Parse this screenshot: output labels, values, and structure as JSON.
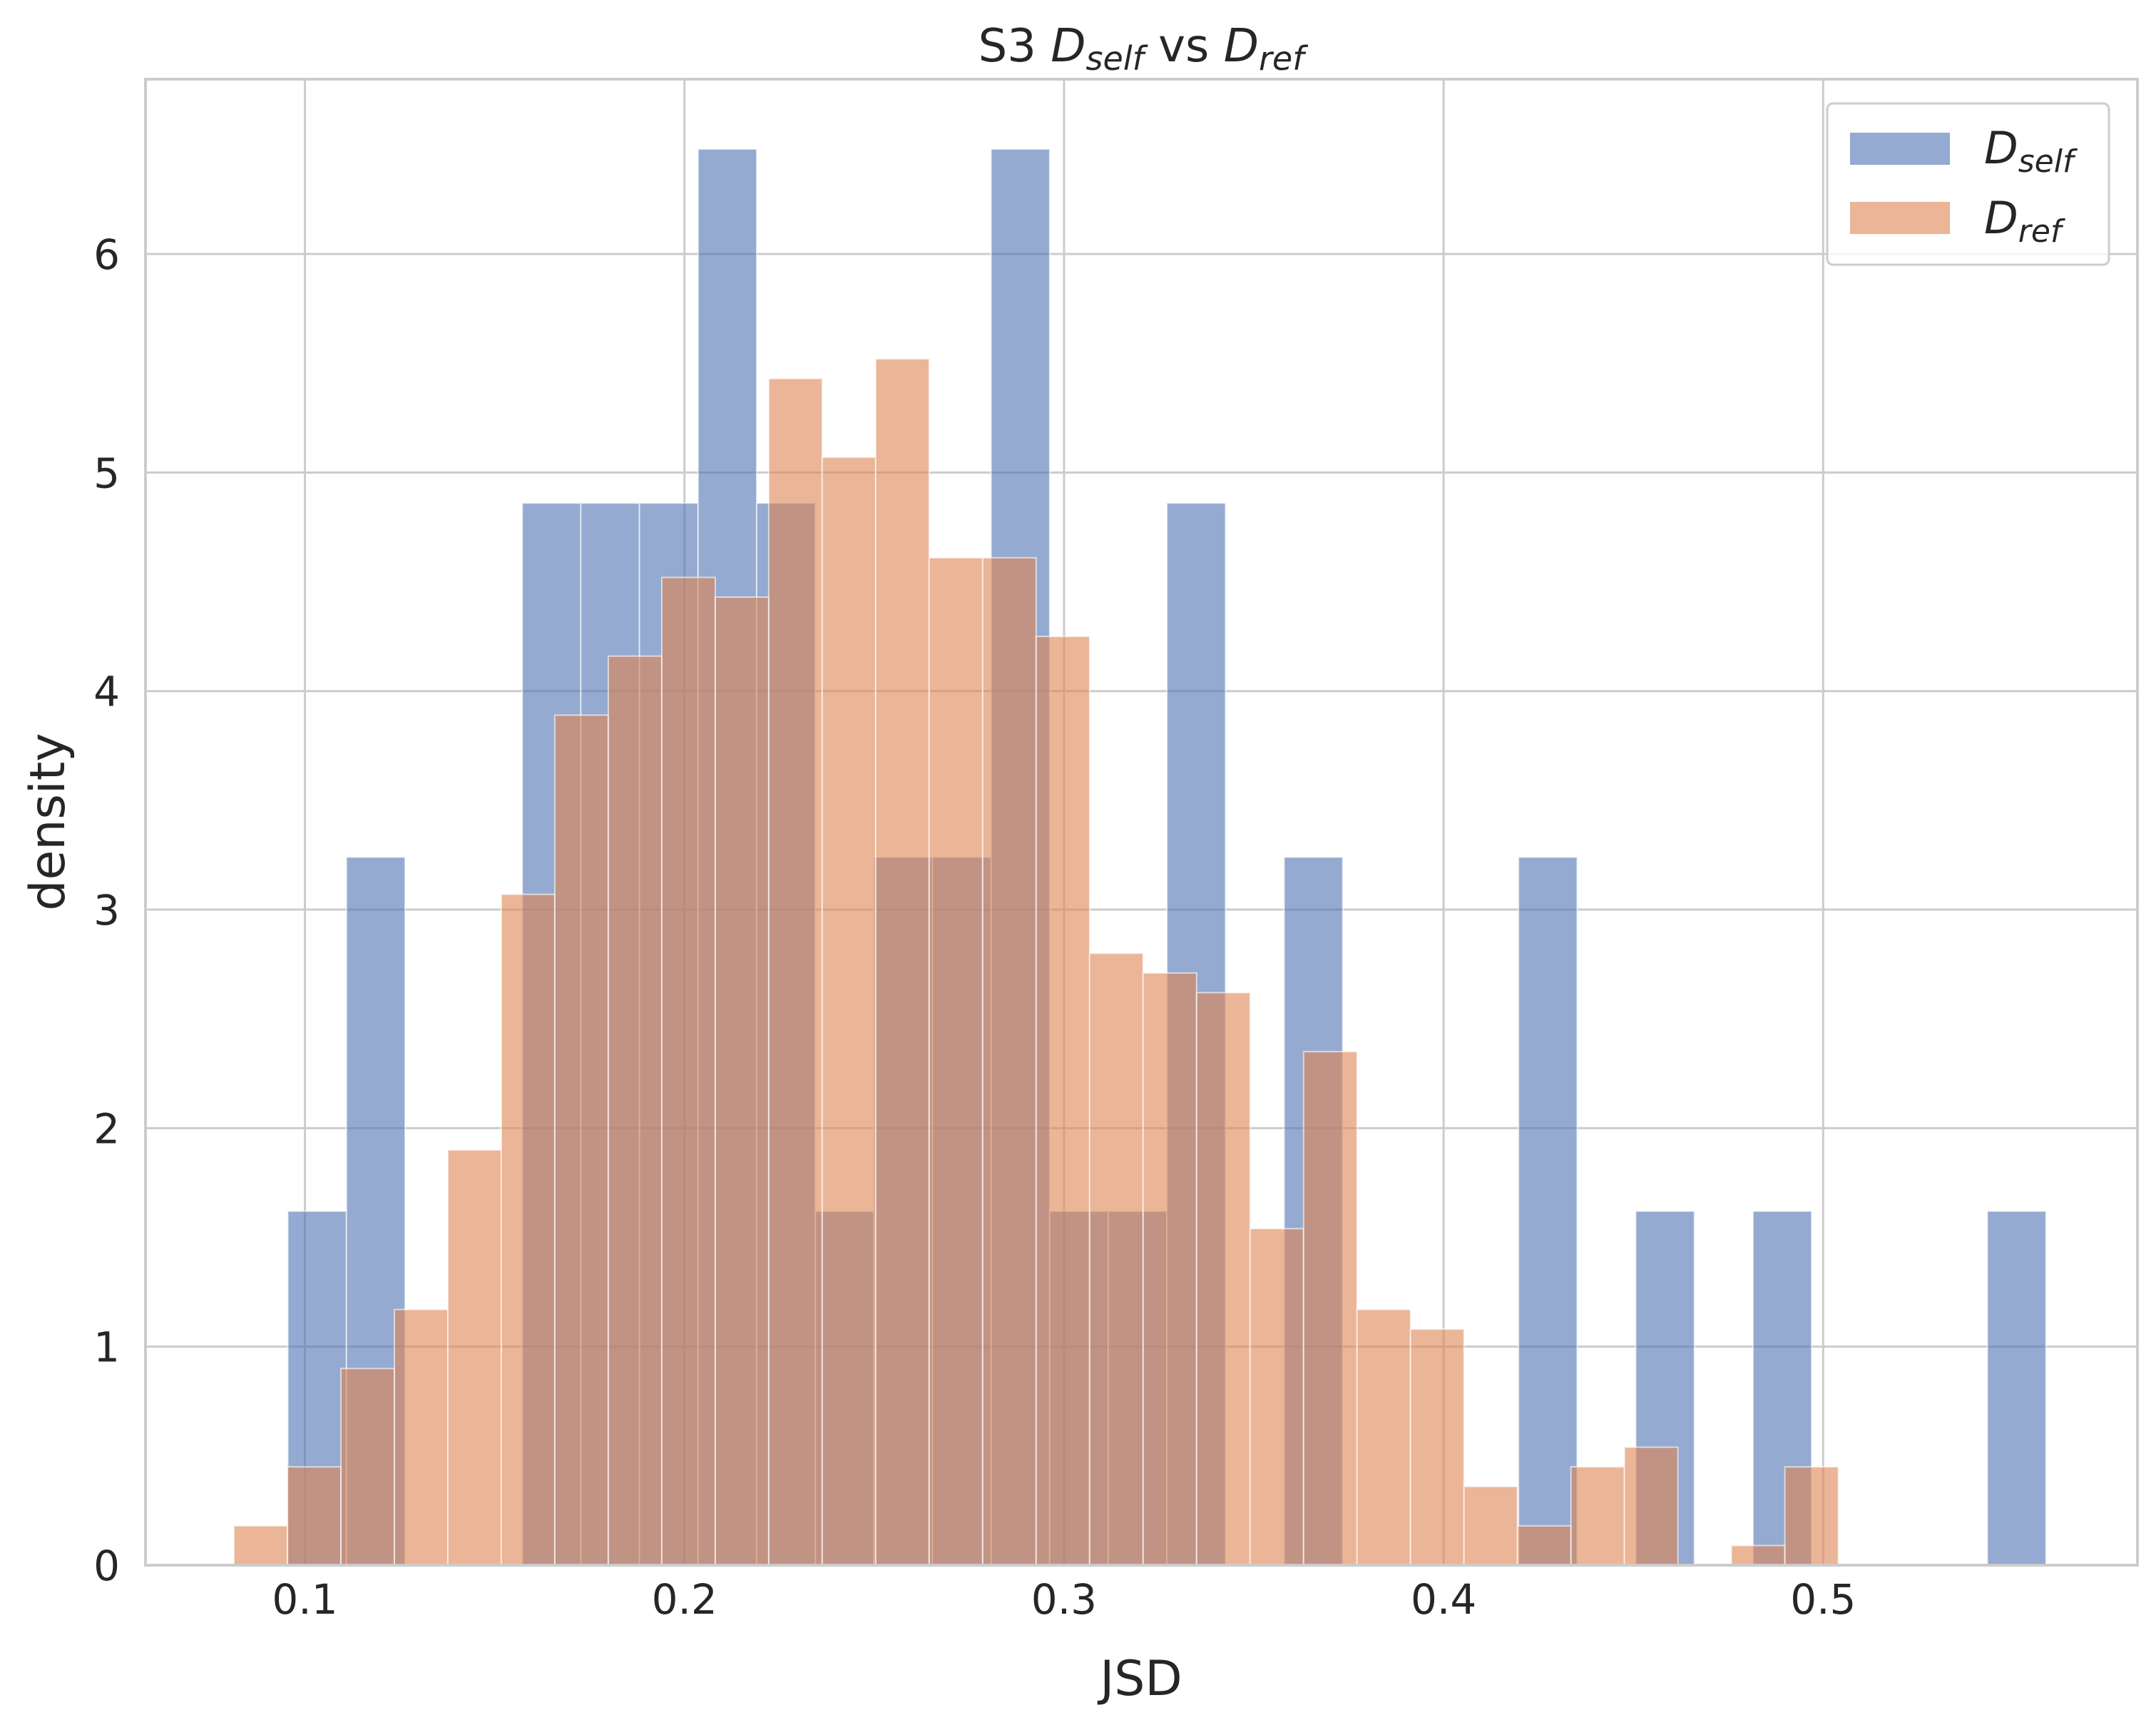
{
  "chart_data": {
    "type": "histogram",
    "title": "S3 D_self vs D_ref",
    "title_parts": {
      "prefix": "S3",
      "joiner": "vs",
      "series1_base": "D",
      "series1_sub": "self",
      "series2_base": "D",
      "series2_sub": "ref"
    },
    "xlabel": "JSD",
    "ylabel": "density",
    "xlim": [
      0.058,
      0.5828
    ],
    "ylim": [
      0,
      6.8
    ],
    "x_ticks": [
      0.1,
      0.2,
      0.3,
      0.4,
      0.5
    ],
    "x_tick_labels": [
      "0.1",
      "0.2",
      "0.3",
      "0.4",
      "0.5"
    ],
    "y_ticks": [
      0,
      1,
      2,
      3,
      4,
      5,
      6
    ],
    "y_tick_labels": [
      "0",
      "1",
      "2",
      "3",
      "4",
      "5",
      "6"
    ],
    "grid": true,
    "legend_position": "top-right",
    "series": [
      {
        "name": "D_self",
        "label_base": "D",
        "label_sub": "self",
        "color": "#4c72b0",
        "alpha": 0.6,
        "bin_start": 0.0955,
        "bin_width": 0.01544,
        "counts": [
          1.62,
          3.24,
          0,
          0,
          4.86,
          4.86,
          4.86,
          6.48,
          4.86,
          1.62,
          3.24,
          3.24,
          6.48,
          1.62,
          1.62,
          4.86,
          0,
          3.24,
          0,
          0,
          0,
          3.24,
          0,
          1.62,
          0,
          1.62,
          0,
          0,
          0,
          1.62
        ]
      },
      {
        "name": "D_ref",
        "label_base": "D",
        "label_sub": "ref",
        "color": "#dd8452",
        "alpha": 0.6,
        "bin_start": 0.0813,
        "bin_width": 0.01409,
        "counts": [
          0.18,
          0.45,
          0.9,
          1.17,
          1.9,
          3.07,
          3.89,
          4.16,
          4.52,
          4.43,
          5.43,
          5.07,
          5.52,
          4.61,
          4.61,
          4.25,
          2.8,
          2.71,
          2.62,
          1.54,
          2.35,
          1.17,
          1.08,
          0.36,
          0.18,
          0.45,
          0.54,
          0,
          0.09,
          0.45
        ]
      }
    ]
  }
}
